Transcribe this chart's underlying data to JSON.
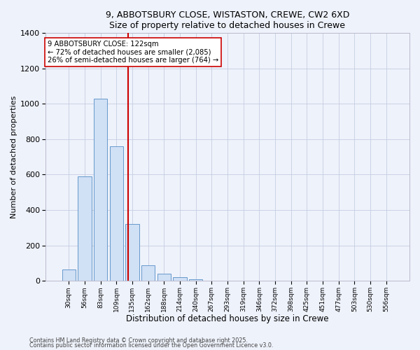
{
  "title1": "9, ABBOTSBURY CLOSE, WISTASTON, CREWE, CW2 6XD",
  "title2": "Size of property relative to detached houses in Crewe",
  "xlabel": "Distribution of detached houses by size in Crewe",
  "ylabel": "Number of detached properties",
  "bar_labels": [
    "30sqm",
    "56sqm",
    "83sqm",
    "109sqm",
    "135sqm",
    "162sqm",
    "188sqm",
    "214sqm",
    "240sqm",
    "267sqm",
    "293sqm",
    "319sqm",
    "346sqm",
    "372sqm",
    "398sqm",
    "425sqm",
    "451sqm",
    "477sqm",
    "503sqm",
    "530sqm",
    "556sqm"
  ],
  "bar_values": [
    65,
    590,
    1030,
    760,
    320,
    90,
    40,
    20,
    8,
    2,
    0,
    0,
    0,
    0,
    0,
    0,
    0,
    0,
    0,
    0,
    0
  ],
  "bar_color": "#d0e0f5",
  "bar_edgecolor": "#6699cc",
  "ylim": [
    0,
    1400
  ],
  "yticks": [
    0,
    200,
    400,
    600,
    800,
    1000,
    1200,
    1400
  ],
  "vline_x": 3.72,
  "vline_color": "#cc0000",
  "annotation_title": "9 ABBOTSBURY CLOSE: 122sqm",
  "annotation_line1": "← 72% of detached houses are smaller (2,085)",
  "annotation_line2": "26% of semi-detached houses are larger (764) →",
  "footer1": "Contains HM Land Registry data © Crown copyright and database right 2025.",
  "footer2": "Contains public sector information licensed under the Open Government Licence v3.0.",
  "bg_color": "#eef2fb",
  "plot_bg_color": "#eef2fb",
  "grid_color": "#c5cde0"
}
